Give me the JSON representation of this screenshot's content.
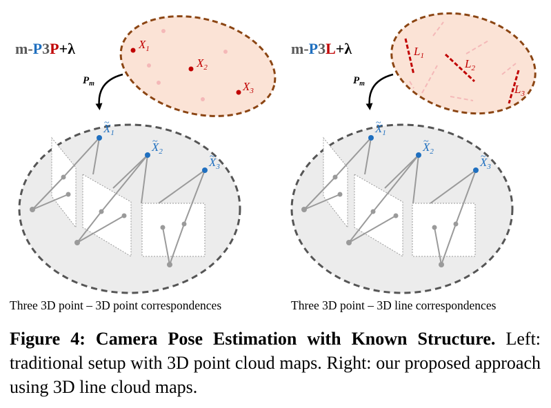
{
  "left": {
    "method": {
      "prefix": "m-",
      "p": "P",
      "three": "3",
      "type": "P",
      "suffix": "+λ"
    },
    "pm": "P",
    "pm_sub": "m",
    "features": [
      {
        "base": "X",
        "sub": "1"
      },
      {
        "base": "X",
        "sub": "2"
      },
      {
        "base": "X",
        "sub": "3"
      }
    ],
    "map_points": [
      {
        "tilde": "~",
        "base": "X",
        "sub": "1"
      },
      {
        "tilde": "~",
        "base": "X",
        "sub": "2"
      },
      {
        "tilde": "~",
        "base": "X",
        "sub": "3"
      }
    ],
    "subtitle": "Three 3D point – 3D point correspondences"
  },
  "right": {
    "method": {
      "prefix": "m-",
      "p": "P",
      "three": "3",
      "type": "L",
      "suffix": "+λ"
    },
    "pm": "P",
    "pm_sub": "m",
    "features": [
      {
        "base": "L",
        "sub": "1"
      },
      {
        "base": "L",
        "sub": "2"
      },
      {
        "base": "L",
        "sub": "3"
      }
    ],
    "map_points": [
      {
        "tilde": "~",
        "base": "X",
        "sub": "1"
      },
      {
        "tilde": "~",
        "base": "X",
        "sub": "2"
      },
      {
        "tilde": "~",
        "base": "X",
        "sub": "3"
      }
    ],
    "subtitle": "Three 3D point – 3D line correspondences"
  },
  "caption": {
    "title": "Figure 4: Camera Pose Estimation with Known Structure.",
    "body": "Left: traditional setup with 3D point cloud maps. Right: our proposed approach using 3D line cloud maps."
  },
  "colors": {
    "red": "#c00000",
    "blue": "#1f6fbf",
    "gray_text": "#595959",
    "ellipse_fill_top": "#fbe3d6",
    "ellipse_stroke_top": "#8b4513",
    "ellipse_fill_bottom": "#ececec",
    "ellipse_stroke_bottom": "#555555"
  }
}
